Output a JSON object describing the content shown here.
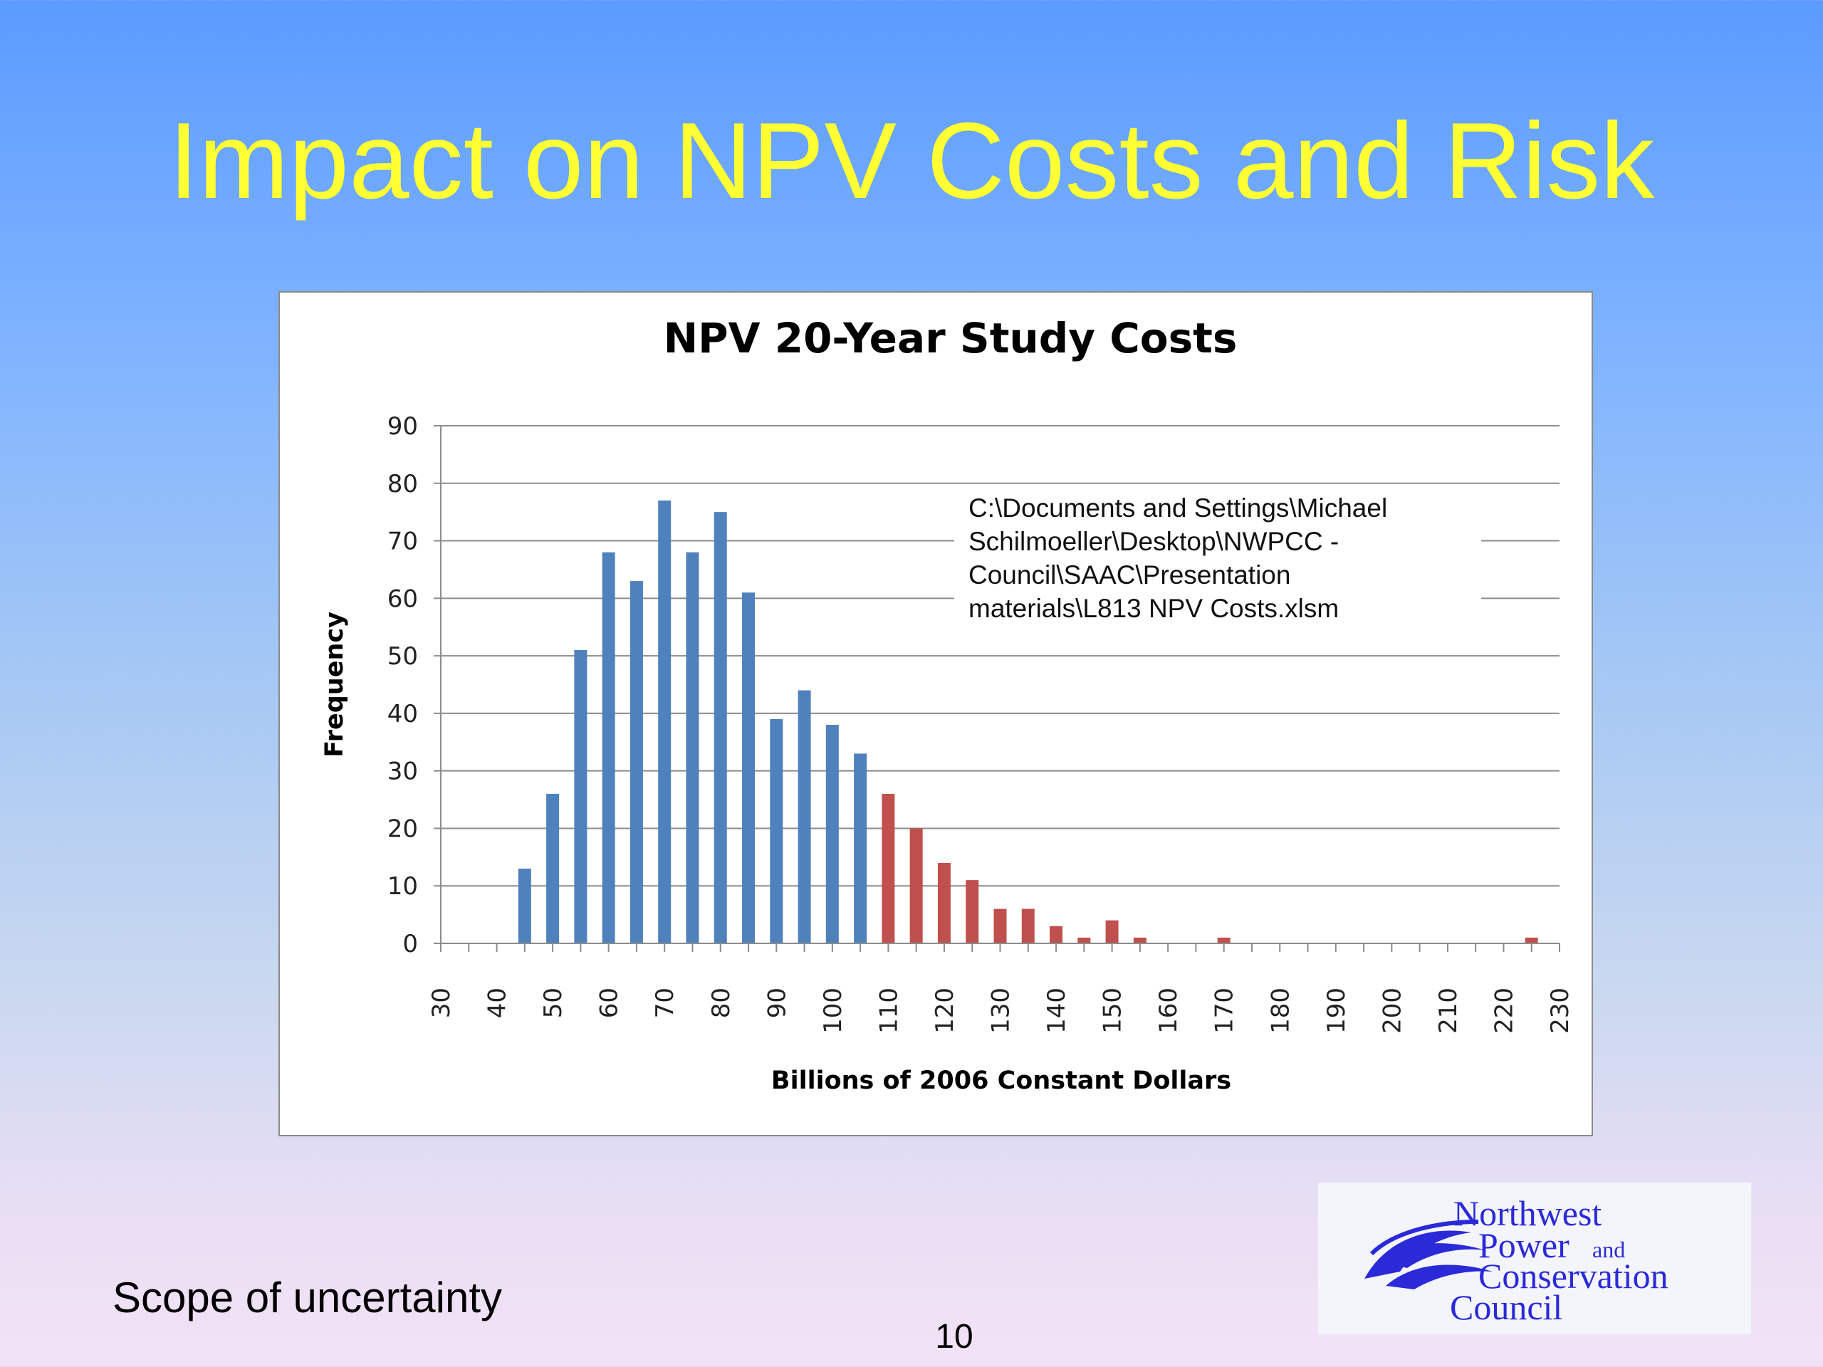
{
  "slide": {
    "title": "Impact on NPV Costs and Risk",
    "caption": "Scope of uncertainty",
    "page_number": "10"
  },
  "file_path_text": "C:\\Documents and Settings\\Michael Schilmoeller\\Desktop\\NWPCC - Council\\SAAC\\Presentation materials\\L813 NPV Costs.xlsm",
  "logo": {
    "line1": "Northwest",
    "line2a": "Power",
    "line2b": "and",
    "line3": "Conservation",
    "line4": "Council"
  },
  "colors": {
    "title": "#ffff33",
    "blue_bars": "#4f81bd",
    "red_bars": "#c0504d",
    "logo": "#2a2ad8"
  },
  "chart_data": {
    "type": "bar",
    "title": "NPV 20-Year Study Costs",
    "xlabel": "Billions of 2006 Constant Dollars",
    "ylabel": "Frequency",
    "ylim": [
      0,
      90
    ],
    "yticks": [
      0,
      10,
      20,
      30,
      40,
      50,
      60,
      70,
      80,
      90
    ],
    "xticks": [
      30,
      40,
      50,
      60,
      70,
      80,
      90,
      100,
      110,
      120,
      130,
      140,
      150,
      160,
      170,
      180,
      190,
      200,
      210,
      220,
      230
    ],
    "grid": true,
    "bin_width": 5,
    "series": [
      {
        "color": "blue",
        "x": [
          45,
          50,
          55,
          60,
          65,
          70,
          75,
          80,
          85,
          90,
          95,
          100,
          105
        ],
        "values": [
          13,
          26,
          51,
          68,
          63,
          77,
          68,
          75,
          61,
          39,
          44,
          38,
          33
        ]
      },
      {
        "color": "red",
        "x": [
          110,
          115,
          120,
          125,
          130,
          135,
          140,
          145,
          150,
          155,
          160,
          165,
          170,
          175,
          180,
          185,
          190,
          195,
          200,
          205,
          210,
          215,
          220,
          225
        ],
        "values": [
          26,
          20,
          14,
          11,
          6,
          6,
          3,
          1,
          4,
          1,
          0,
          0,
          1,
          0,
          0,
          0,
          0,
          0,
          0,
          0,
          0,
          0,
          0,
          1
        ]
      }
    ]
  }
}
